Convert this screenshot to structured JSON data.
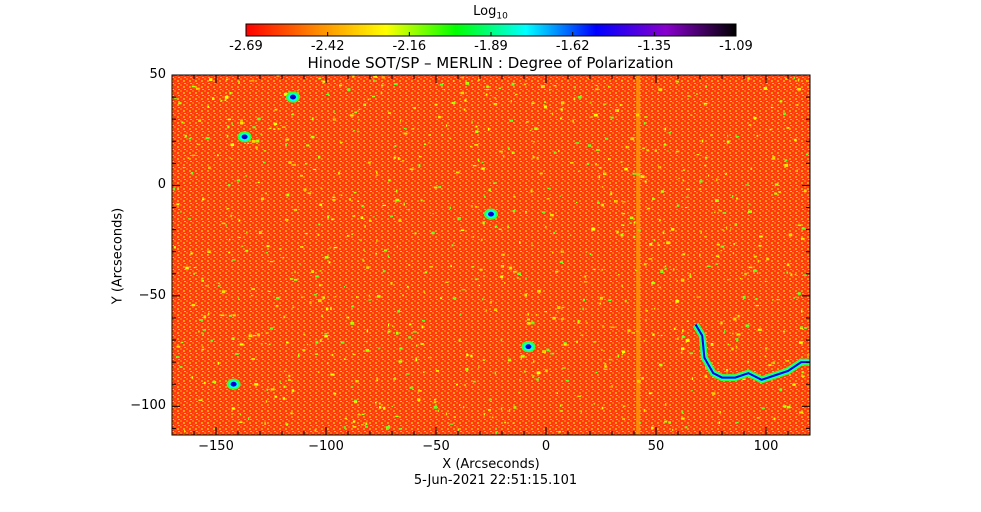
{
  "chart_data": {
    "type": "heatmap",
    "title": "Hinode SOT/SP – MERLIN : Degree of Polarization",
    "xlabel": "X (Arcseconds)",
    "ylabel": "Y (Arcseconds)",
    "timestamp": "5-Jun-2021 22:51:15.101",
    "xlim": [
      -170,
      120
    ],
    "ylim": [
      -113,
      50
    ],
    "x_ticks": [
      -150,
      -100,
      -50,
      0,
      50,
      100
    ],
    "y_ticks": [
      50,
      0,
      -50,
      -100
    ],
    "colorbar": {
      "title_base": "Log",
      "title_sub": "10",
      "range": [
        -2.69,
        -1.09
      ],
      "ticks": [
        "-2.69",
        "-2.42",
        "-2.16",
        "-1.89",
        "-1.62",
        "-1.35",
        "-1.09"
      ],
      "colors": [
        "#ff0000",
        "#ff8800",
        "#ffff00",
        "#00ff00",
        "#00ffff",
        "#0000ff",
        "#8800cc",
        "#000000"
      ]
    },
    "background_color": "#ff4010",
    "features": [
      {
        "name": "coastline",
        "x": [
          68,
          71,
          72,
          76,
          80,
          86,
          92,
          98,
          104,
          110,
          116,
          120
        ],
        "y": [
          -63,
          -68,
          -78,
          -85,
          -87,
          -87,
          -85,
          -88,
          -86,
          -84,
          -80,
          -80
        ]
      },
      {
        "name": "spot-1",
        "x": [
          -25
        ],
        "y": [
          -13
        ]
      },
      {
        "name": "spot-2",
        "x": [
          -8
        ],
        "y": [
          -73
        ]
      },
      {
        "name": "spot-3",
        "x": [
          -142
        ],
        "y": [
          -90
        ]
      },
      {
        "name": "spot-4",
        "x": [
          -137
        ],
        "y": [
          22
        ]
      },
      {
        "name": "spot-5",
        "x": [
          -115
        ],
        "y": [
          40
        ]
      }
    ]
  }
}
